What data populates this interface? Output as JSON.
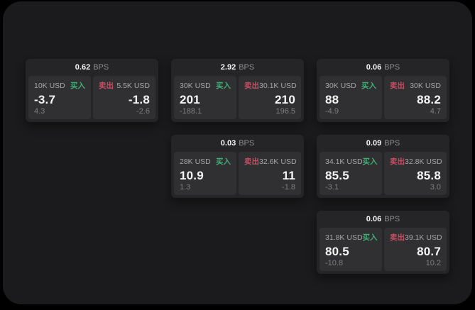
{
  "colors": {
    "page-bg": "#000000",
    "surface": "#1b1b1d",
    "card": "#252527",
    "panel": "#303032",
    "buy": "#3fae74",
    "sell": "#c44f63"
  },
  "cards": [
    {
      "bps": "0.62",
      "bps_unit": "BPS",
      "buy": {
        "notional": "10K USD",
        "side": "买入",
        "value": "-3.7",
        "sub": "4.3"
      },
      "sell": {
        "side": "卖出",
        "notional": "5.5K USD",
        "value": "-1.8",
        "sub": "-2.6"
      }
    },
    {
      "bps": "2.92",
      "bps_unit": "BPS",
      "buy": {
        "notional": "30K USD",
        "side": "买入",
        "value": "201",
        "sub": "-188.1"
      },
      "sell": {
        "side": "卖出",
        "notional": "30.1K USD",
        "value": "210",
        "sub": "196.5"
      }
    },
    {
      "bps": "0.06",
      "bps_unit": "BPS",
      "buy": {
        "notional": "30K USD",
        "side": "买入",
        "value": "88",
        "sub": "-4.9"
      },
      "sell": {
        "side": "卖出",
        "notional": "30K USD",
        "value": "88.2",
        "sub": "4.7"
      }
    },
    {
      "bps": "0.03",
      "bps_unit": "BPS",
      "buy": {
        "notional": "28K USD",
        "side": "买入",
        "value": "10.9",
        "sub": "1.3"
      },
      "sell": {
        "side": "卖出",
        "notional": "32.6K USD",
        "value": "11",
        "sub": "-1.8"
      }
    },
    {
      "bps": "0.09",
      "bps_unit": "BPS",
      "buy": {
        "notional": "34.1K USD",
        "side": "买入",
        "value": "85.5",
        "sub": "-3.1"
      },
      "sell": {
        "side": "卖出",
        "notional": "32.8K USD",
        "value": "85.8",
        "sub": "3.0"
      }
    },
    {
      "bps": "0.06",
      "bps_unit": "BPS",
      "buy": {
        "notional": "31.8K USD",
        "side": "买入",
        "value": "80.5",
        "sub": "-10.8"
      },
      "sell": {
        "side": "卖出",
        "notional": "39.1K USD",
        "value": "80.7",
        "sub": "10.2"
      }
    }
  ]
}
